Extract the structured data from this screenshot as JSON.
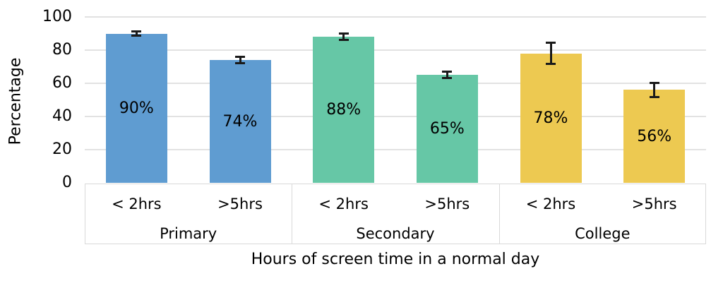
{
  "chart_data": {
    "type": "bar",
    "title": "",
    "xlabel": "Hours of screen time in a normal day",
    "ylabel": "Percentage",
    "ylim": [
      0,
      100
    ],
    "yticks": [
      0,
      20,
      40,
      60,
      80,
      100
    ],
    "grid": true,
    "legend": "none",
    "bar_labels_position": "inside-center",
    "error_bar_color": "#1a1a1a",
    "gridline_color": "#e2e2e2",
    "axis_box_color": "#d9d9d9",
    "groups": [
      {
        "label": "Primary",
        "color": "#5f9cd1",
        "bars": [
          {
            "label": "< 2hrs",
            "value": 90,
            "data_label": "90%",
            "error": 2
          },
          {
            "label": ">5hrs",
            "value": 74,
            "data_label": "74%",
            "error": 2.5
          }
        ]
      },
      {
        "label": "Secondary",
        "color": "#66c7a6",
        "bars": [
          {
            "label": "< 2hrs",
            "value": 88,
            "data_label": "88%",
            "error": 2.5
          },
          {
            "label": ">5hrs",
            "value": 65,
            "data_label": "65%",
            "error": 2.5
          }
        ]
      },
      {
        "label": "College",
        "color": "#edc951",
        "bars": [
          {
            "label": "< 2hrs",
            "value": 78,
            "data_label": "78%",
            "error": 7
          },
          {
            "label": ">5hrs",
            "value": 56,
            "data_label": "56%",
            "error": 5
          }
        ]
      }
    ]
  }
}
